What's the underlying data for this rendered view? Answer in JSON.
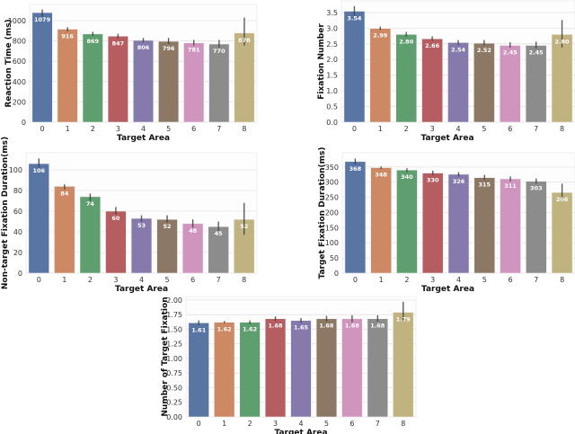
{
  "colors": [
    "#5975a4",
    "#cc8963",
    "#5f9e6e",
    "#b55d60",
    "#857aab",
    "#8d7866",
    "#d095bf",
    "#8c8c8c",
    "#c1b37f"
  ],
  "chart_data": [
    {
      "type": "bar",
      "xlabel": "Target Area",
      "ylabel": "Reaction Time (ms)",
      "categories": [
        "0",
        "1",
        "2",
        "3",
        "4",
        "5",
        "6",
        "7",
        "8"
      ],
      "values": [
        1079,
        916,
        869,
        847,
        806,
        796,
        781,
        770,
        878
      ],
      "data_labels": [
        "1079",
        "916",
        "869",
        "847",
        "806",
        "796",
        "781",
        "770",
        "878"
      ],
      "error_bars": [
        [
          1040,
          1110
        ],
        [
          895,
          935
        ],
        [
          850,
          890
        ],
        [
          825,
          870
        ],
        [
          785,
          830
        ],
        [
          770,
          830
        ],
        [
          755,
          810
        ],
        [
          735,
          810
        ],
        [
          755,
          1030
        ]
      ],
      "ylim": [
        0,
        1159
      ],
      "yticks": [
        0,
        200,
        400,
        600,
        800,
        1000
      ],
      "ytick_labels": [
        "0",
        "200",
        "400",
        "600",
        "800",
        "1000"
      ],
      "grid": true
    },
    {
      "type": "bar",
      "xlabel": "Target Area",
      "ylabel": "Fixation Number",
      "categories": [
        "0",
        "1",
        "2",
        "3",
        "4",
        "5",
        "6",
        "7",
        "8"
      ],
      "values": [
        3.54,
        2.99,
        2.8,
        2.66,
        2.54,
        2.52,
        2.45,
        2.45,
        2.8
      ],
      "data_labels": [
        "3.54",
        "2.99",
        "2.80",
        "2.66",
        "2.54",
        "2.52",
        "2.45",
        "2.45",
        "2.80"
      ],
      "error_bars": [
        [
          3.4,
          3.7
        ],
        [
          2.94,
          3.05
        ],
        [
          2.73,
          2.88
        ],
        [
          2.6,
          2.74
        ],
        [
          2.47,
          2.62
        ],
        [
          2.45,
          2.62
        ],
        [
          2.38,
          2.55
        ],
        [
          2.35,
          2.57
        ],
        [
          2.38,
          3.26
        ]
      ],
      "ylim": [
        0,
        3.87
      ],
      "yticks": [
        0,
        0.5,
        1,
        1.5,
        2,
        2.5,
        3,
        3.5
      ],
      "ytick_labels": [
        "0.0",
        "0.5",
        "1.0",
        "1.5",
        "2.0",
        "2.5",
        "3.0",
        "3.5"
      ],
      "grid": true
    },
    {
      "type": "bar",
      "xlabel": "Target Area",
      "ylabel": "Non-target Fixation Duration(ms)",
      "categories": [
        "0",
        "1",
        "2",
        "3",
        "4",
        "5",
        "6",
        "7",
        "8"
      ],
      "values": [
        106,
        84,
        74,
        60,
        53,
        52,
        48,
        45,
        52
      ],
      "data_labels": [
        "106",
        "84",
        "74",
        "60",
        "53",
        "52",
        "48",
        "45",
        "52"
      ],
      "error_bars": [
        [
          102,
          111
        ],
        [
          81,
          86
        ],
        [
          70,
          77
        ],
        [
          57,
          64
        ],
        [
          50,
          56
        ],
        [
          49,
          56
        ],
        [
          44,
          52
        ],
        [
          41,
          50
        ],
        [
          37,
          68
        ]
      ],
      "ylim": [
        0,
        116.5
      ],
      "yticks": [
        0,
        20,
        40,
        60,
        80,
        100
      ],
      "ytick_labels": [
        "0",
        "20",
        "40",
        "60",
        "80",
        "100"
      ],
      "grid": true
    },
    {
      "type": "bar",
      "xlabel": "Target Area",
      "ylabel": "Target Fixation Duration(ms)",
      "categories": [
        "0",
        "1",
        "2",
        "3",
        "4",
        "5",
        "6",
        "7",
        "8"
      ],
      "values": [
        368,
        348,
        340,
        330,
        326,
        315,
        311,
        303,
        266
      ],
      "data_labels": [
        "368",
        "348",
        "340",
        "330",
        "326",
        "315",
        "311",
        "303",
        "266"
      ],
      "error_bars": [
        [
          358,
          378
        ],
        [
          343,
          352
        ],
        [
          333,
          346
        ],
        [
          323,
          338
        ],
        [
          319,
          333
        ],
        [
          307,
          324
        ],
        [
          303,
          319
        ],
        [
          295,
          312
        ],
        [
          240,
          295
        ]
      ],
      "ylim": [
        0,
        397
      ],
      "yticks": [
        0,
        50,
        100,
        150,
        200,
        250,
        300,
        350
      ],
      "ytick_labels": [
        "0",
        "50",
        "100",
        "150",
        "200",
        "250",
        "300",
        "350"
      ],
      "grid": true
    },
    {
      "type": "bar",
      "xlabel": "Target Area",
      "ylabel": "Number of Target Fixation",
      "categories": [
        "0",
        "1",
        "2",
        "3",
        "4",
        "5",
        "6",
        "7",
        "8"
      ],
      "values": [
        1.61,
        1.62,
        1.62,
        1.68,
        1.65,
        1.68,
        1.68,
        1.68,
        1.79
      ],
      "data_labels": [
        "1.61",
        "1.62",
        "1.62",
        "1.68",
        "1.65",
        "1.68",
        "1.68",
        "1.68",
        "1.79"
      ],
      "error_bars": [
        [
          1.57,
          1.65
        ],
        [
          1.6,
          1.64
        ],
        [
          1.59,
          1.65
        ],
        [
          1.64,
          1.72
        ],
        [
          1.61,
          1.69
        ],
        [
          1.63,
          1.73
        ],
        [
          1.62,
          1.74
        ],
        [
          1.63,
          1.74
        ],
        [
          1.65,
          1.97
        ]
      ],
      "ylim": [
        0,
        2.06
      ],
      "yticks": [
        0,
        0.25,
        0.5,
        0.75,
        1,
        1.25,
        1.5,
        1.75,
        2
      ],
      "ytick_labels": [
        "0.00",
        "0.25",
        "0.50",
        "0.75",
        "1.00",
        "1.25",
        "1.50",
        "1.75",
        "2.00"
      ],
      "grid": true
    }
  ]
}
